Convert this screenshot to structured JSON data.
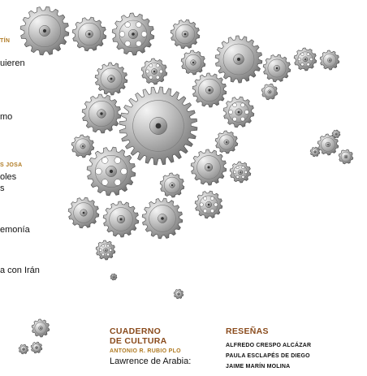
{
  "left_column": {
    "fragments": [
      {
        "kind": "author",
        "text": "TÍN"
      },
      {
        "kind": "title",
        "text": "uieren"
      },
      {
        "kind": "title",
        "text": "mo"
      },
      {
        "kind": "author",
        "text": "S JOSA"
      },
      {
        "kind": "title",
        "text": "oles"
      },
      {
        "kind": "title",
        "text": "s"
      },
      {
        "kind": "title",
        "text": "emonía"
      },
      {
        "kind": "title",
        "text": "a con Irán"
      }
    ]
  },
  "cuaderno": {
    "heading_line1": "CUADERNO",
    "heading_line2": "DE CULTURA",
    "author": "ANTONIO R. RUBIO PLO",
    "title": "Lawrence de Arabia:"
  },
  "resenas": {
    "heading": "RESEÑAS",
    "reviewers": [
      "ALFREDO CRESPO ALCÁZAR",
      "PAULA ESCLAPÉS DE DIEGO",
      "JAIME MARÍN MOLINA"
    ]
  },
  "colors": {
    "heading": "#8a4b1c",
    "author": "#b07a22",
    "text": "#111111",
    "gear_light": "#f4f4f4",
    "gear_dark": "#6e6e6e"
  },
  "illustration": "metal-gears"
}
